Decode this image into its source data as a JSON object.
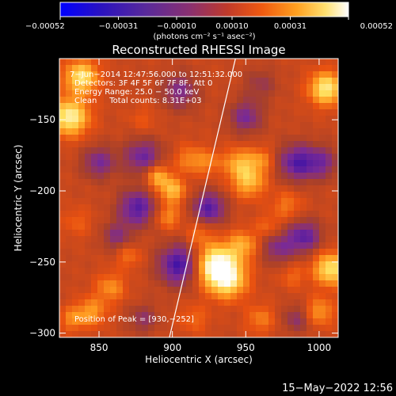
{
  "chart_data": {
    "type": "heatmap",
    "title": "Reconstructed RHESSI Image",
    "xlabel": "Heliocentric X (arcsec)",
    "ylabel": "Heliocentric Y (arcsec)",
    "xlim": [
      823,
      1013
    ],
    "ylim": [
      -303,
      -107
    ],
    "xticks": [
      850,
      900,
      950,
      1000
    ],
    "xtick_labels": [
      "850",
      "900",
      "950",
      "1000"
    ],
    "yticks": [
      -150,
      -200,
      -250,
      -300
    ],
    "ytick_labels": [
      "−150",
      "−200",
      "−250",
      "−300"
    ],
    "colorbar": {
      "range": [
        -0.00052,
        0.00052
      ],
      "ticks": [
        -0.00052,
        -0.00031,
        -0.0001,
        0.0001,
        0.00031,
        0.00052
      ],
      "tick_labels": [
        "−0.00052",
        "−0.00031",
        "−0.00010",
        "0.00010",
        "0.00031",
        "0.00052"
      ],
      "unit_label": "(photons cm⁻² s⁻¹ asec⁻²)"
    },
    "annotations": [
      "7−Jun−2014 12:47:56.000 to 12:51:32.000",
      "Detectors: 3F 4F 5F 6F 7F 8F, Att 0",
      "Energy Range: 25.0 − 50.0 keV",
      "Clean     Total counts: 8.31E+03"
    ],
    "peak_label": "Position of Peak = [930,−252]",
    "peak": [
      930,
      -252
    ],
    "limb_line": [
      [
        898,
        -303
      ],
      [
        943,
        -107
      ]
    ],
    "colormap": [
      "#0000ff",
      "#3a10a8",
      "#7a2a96",
      "#a8402a",
      "#e85010",
      "#ff9a20",
      "#ffe060",
      "#ffffff"
    ],
    "sources": [
      {
        "x": 930,
        "y": -252,
        "amp": 0.00052,
        "r": 10
      },
      {
        "x": 938,
        "y": -263,
        "amp": 0.00035,
        "r": 9
      },
      {
        "x": 948,
        "y": -238,
        "amp": 0.00024,
        "r": 7
      },
      {
        "x": 952,
        "y": -193,
        "amp": 0.0003,
        "r": 8
      },
      {
        "x": 945,
        "y": -180,
        "amp": 0.00024,
        "r": 7
      },
      {
        "x": 960,
        "y": -178,
        "amp": 0.00018,
        "r": 6
      },
      {
        "x": 900,
        "y": -200,
        "amp": 0.0003,
        "r": 6
      },
      {
        "x": 890,
        "y": -190,
        "amp": 0.00028,
        "r": 6
      },
      {
        "x": 897,
        "y": -218,
        "amp": 0.0002,
        "r": 6
      },
      {
        "x": 912,
        "y": -178,
        "amp": 0.00018,
        "r": 7
      },
      {
        "x": 925,
        "y": -180,
        "amp": 0.00015,
        "r": 6
      },
      {
        "x": 918,
        "y": -230,
        "amp": 0.00014,
        "r": 6
      },
      {
        "x": 965,
        "y": -225,
        "amp": 0.00012,
        "r": 6
      },
      {
        "x": 830,
        "y": -148,
        "amp": 0.00045,
        "r": 9
      },
      {
        "x": 838,
        "y": -120,
        "amp": 0.0004,
        "r": 8
      },
      {
        "x": 1005,
        "y": -128,
        "amp": 0.00042,
        "r": 8
      },
      {
        "x": 1008,
        "y": -255,
        "amp": 0.0004,
        "r": 8
      },
      {
        "x": 1000,
        "y": -285,
        "amp": 0.00022,
        "r": 7
      },
      {
        "x": 978,
        "y": -210,
        "amp": 0.00015,
        "r": 7
      },
      {
        "x": 982,
        "y": -260,
        "amp": 0.00012,
        "r": 6
      },
      {
        "x": 858,
        "y": -268,
        "amp": 0.0002,
        "r": 7
      },
      {
        "x": 845,
        "y": -285,
        "amp": 0.00022,
        "r": 7
      },
      {
        "x": 870,
        "y": -246,
        "amp": 0.00014,
        "r": 6
      },
      {
        "x": 832,
        "y": -290,
        "amp": 0.00018,
        "r": 6
      },
      {
        "x": 835,
        "y": -222,
        "amp": 0.0001,
        "r": 7
      },
      {
        "x": 880,
        "y": -150,
        "amp": 8e-05,
        "r": 7
      },
      {
        "x": 960,
        "y": -290,
        "amp": 0.00016,
        "r": 7
      },
      {
        "x": 915,
        "y": -290,
        "amp": 0.00012,
        "r": 7
      },
      {
        "x": 905,
        "y": -252,
        "amp": -0.00035,
        "r": 10
      },
      {
        "x": 876,
        "y": -212,
        "amp": -0.0003,
        "r": 9
      },
      {
        "x": 880,
        "y": -176,
        "amp": -0.00025,
        "r": 9
      },
      {
        "x": 925,
        "y": -212,
        "amp": -0.0003,
        "r": 8
      },
      {
        "x": 985,
        "y": -180,
        "amp": -0.0003,
        "r": 9
      },
      {
        "x": 972,
        "y": -240,
        "amp": -0.0002,
        "r": 8
      },
      {
        "x": 990,
        "y": -232,
        "amp": -0.00028,
        "r": 8
      },
      {
        "x": 905,
        "y": -130,
        "amp": -0.0002,
        "r": 9
      },
      {
        "x": 950,
        "y": -148,
        "amp": -0.00022,
        "r": 8
      },
      {
        "x": 850,
        "y": -180,
        "amp": -0.00022,
        "r": 8
      },
      {
        "x": 862,
        "y": -232,
        "amp": -0.00018,
        "r": 7
      },
      {
        "x": 1002,
        "y": -180,
        "amp": -0.0002,
        "r": 8
      },
      {
        "x": 880,
        "y": -290,
        "amp": -0.00015,
        "r": 7
      },
      {
        "x": 985,
        "y": -290,
        "amp": -0.00016,
        "r": 7
      },
      {
        "x": 960,
        "y": -125,
        "amp": -0.00012,
        "r": 8
      }
    ]
  },
  "footer": {
    "timestamp": "15−May−2022 12:56"
  }
}
